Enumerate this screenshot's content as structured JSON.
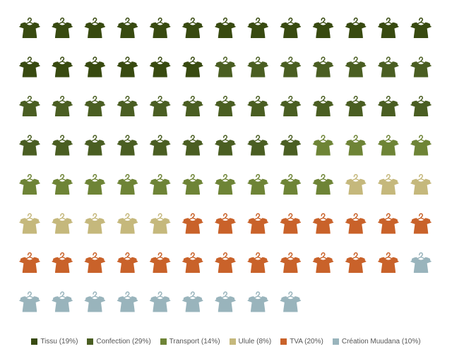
{
  "chart_data": {
    "type": "waffle",
    "title": "",
    "unit_icon": "shirt-on-hanger-icon",
    "total_units": 100,
    "columns": 13,
    "series": [
      {
        "name": "Tissu",
        "value": 19,
        "label": "Tissu (19%)",
        "color": "#384a10"
      },
      {
        "name": "Confection",
        "value": 29,
        "label": "Confection (29%)",
        "color": "#4a5e22"
      },
      {
        "name": "Transport",
        "value": 14,
        "label": "Transport (14%)",
        "color": "#6e8436"
      },
      {
        "name": "Ulule",
        "value": 8,
        "label": "Ulule (8%)",
        "color": "#c5b87c"
      },
      {
        "name": "TVA",
        "value": 20,
        "label": "TVA (20%)",
        "color": "#c9622a"
      },
      {
        "name": "Création Muudana",
        "value": 10,
        "label": "Création Muudana (10%)",
        "color": "#99b4bc"
      }
    ],
    "legend_position": "bottom"
  }
}
